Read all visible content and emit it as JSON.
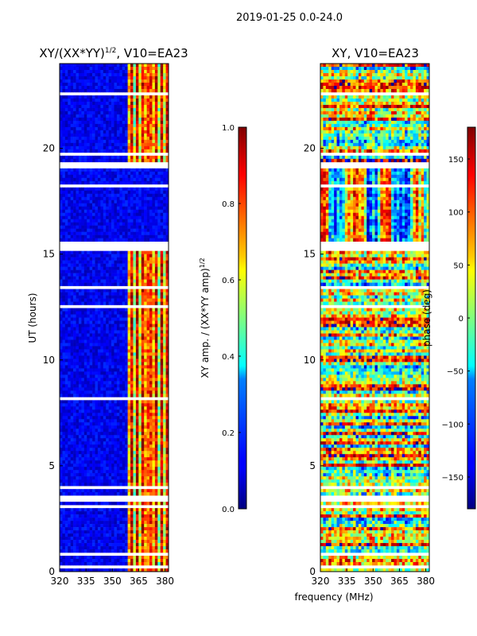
{
  "figure": {
    "suptitle": "2019-01-25 0.0-24.0"
  },
  "chart_data": [
    {
      "type": "heatmap",
      "title": "XY/(XX*YY)",
      "title_sup": "1/2",
      "title_tail": ", V10=EA23",
      "ylabel": "UT (hours)",
      "xlim": [
        320,
        382
      ],
      "ylim": [
        0,
        24
      ],
      "xticks": [
        320,
        335,
        350,
        365,
        380
      ],
      "yticks": [
        0,
        5,
        10,
        15,
        20
      ],
      "signal_band_mhz": [
        359,
        382
      ],
      "colorbar": {
        "label": "XY amp. / (XX*YY amp)",
        "label_sup": "1/2",
        "range": [
          0.0,
          1.0
        ],
        "ticks": [
          "0.0",
          "0.2",
          "0.4",
          "0.6",
          "0.8",
          "1.0"
        ],
        "tick_values": [
          0.0,
          0.2,
          0.4,
          0.6,
          0.8,
          1.0
        ]
      }
    },
    {
      "type": "heatmap",
      "title": "XY, V10=EA23",
      "xlabel": "frequency (MHz)",
      "ylabel": "phase (deg)",
      "xlim": [
        320,
        382
      ],
      "ylim": [
        0,
        24
      ],
      "xticks": [
        320,
        335,
        350,
        365,
        380
      ],
      "yticks": [
        0,
        5,
        10,
        15,
        20
      ],
      "colorbar": {
        "range": [
          -180,
          180
        ],
        "ticks": [
          "−150",
          "−100",
          "−50",
          "0",
          "50",
          "100",
          "150"
        ],
        "tick_values": [
          -150,
          -100,
          -50,
          0,
          50,
          100,
          150
        ]
      }
    }
  ]
}
